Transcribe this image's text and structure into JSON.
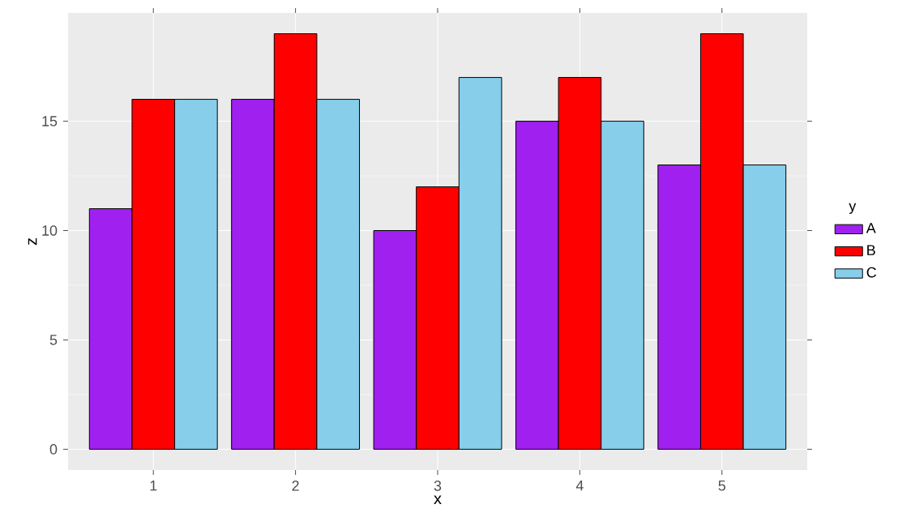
{
  "chart_data": {
    "type": "bar",
    "xlabel": "x",
    "ylabel": "z",
    "legend_title": "y",
    "categories": [
      "1",
      "2",
      "3",
      "4",
      "5"
    ],
    "series": [
      {
        "name": "A",
        "color": "#a020f0",
        "values": [
          11,
          16,
          10,
          15,
          13
        ]
      },
      {
        "name": "B",
        "color": "#ff0000",
        "values": [
          16,
          19,
          12,
          17,
          19
        ]
      },
      {
        "name": "C",
        "color": "#87ceeb",
        "values": [
          16,
          16,
          17,
          15,
          13
        ]
      }
    ],
    "ylim": [
      -0.95,
      19.95
    ],
    "yticks": [
      0,
      5,
      10,
      15
    ],
    "grid": true,
    "legend": "right"
  }
}
